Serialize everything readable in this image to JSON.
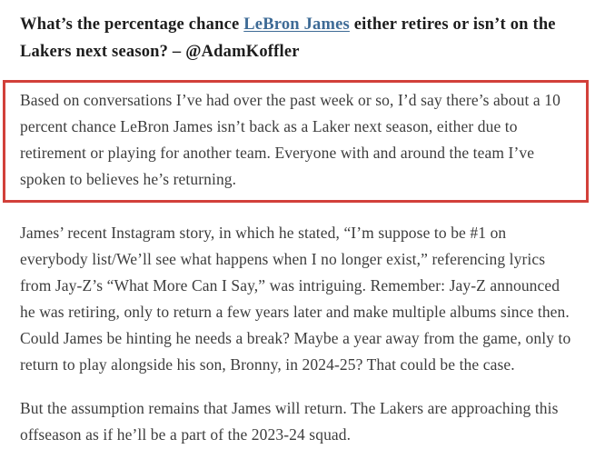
{
  "article": {
    "question": {
      "before_link": "What’s the percentage chance ",
      "link_text": "LeBron James",
      "after_link": " either retires or isn’t on the Lakers next season? – @AdamKoffler"
    },
    "highlighted_answer": "Based on conversations I’ve had over the past week or so, I’d say there’s about a 10 percent chance LeBron James isn’t back as a Laker next season, either due to retirement or playing for another team. Everyone with and around the team I’ve spoken to believes he’s returning.",
    "paragraphs": [
      "James’ recent Instagram story, in which he stated, “I’m suppose to be #1 on everybody list/We’ll see what happens when I no longer exist,” referencing lyrics from Jay-Z’s “What More Can I Say,” was intriguing. Remember: Jay-Z announced he was retiring, only to return a few years later and make multiple albums since then. Could James be hinting he needs a break? Maybe a year away from the game, only to return to play alongside his son, Bronny, in 2024-25? That could be the case.",
      "But the assumption remains that James will return. The Lakers are approaching this offseason as if he’ll be a part of the 2023-24 squad."
    ],
    "colors": {
      "highlight_border": "#d2403a",
      "link": "#3e6b96",
      "heading_text": "#1d1d1d",
      "body_text": "#3d3d3d",
      "page_bg": "#ffffff"
    }
  }
}
